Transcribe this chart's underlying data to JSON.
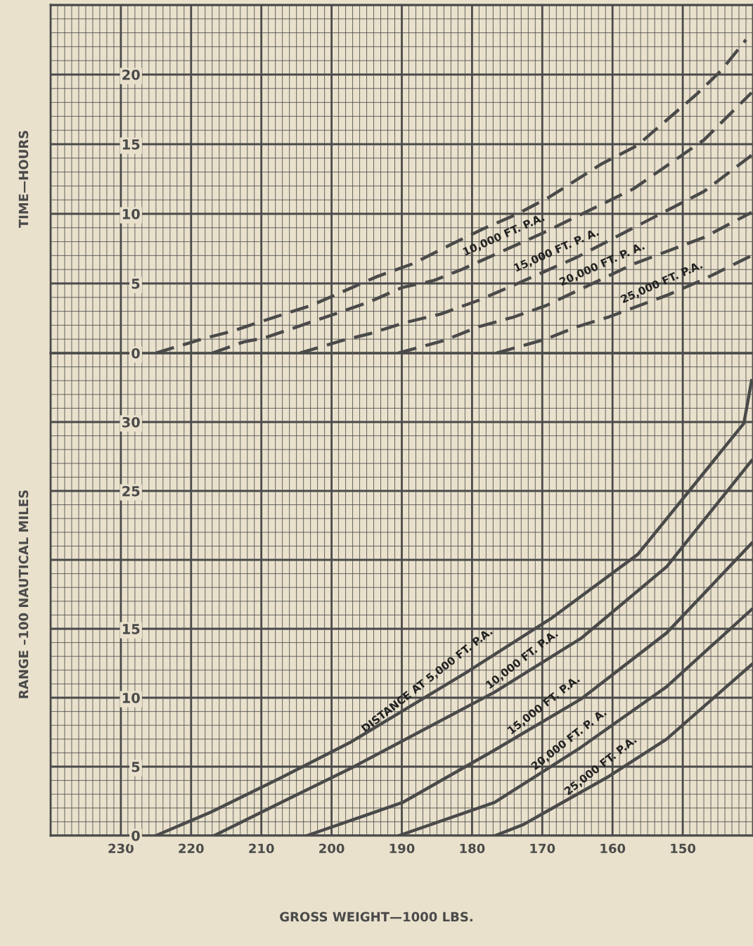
{
  "chart_data": [
    {
      "type": "line",
      "ylabel": "TIME—HOURS",
      "xlim": [
        240,
        140
      ],
      "xticks": [
        230,
        220,
        210,
        200,
        190,
        180,
        170,
        160,
        150
      ],
      "ylim": [
        0,
        25
      ],
      "yticks": [
        0,
        5,
        10,
        15,
        20,
        {
          "value": 25,
          "label": null
        }
      ],
      "tick_labels": "y",
      "grid": true,
      "line_style": "dashed",
      "marker": "none",
      "series": [
        {
          "color": "#4a4a4a",
          "x": [
            225,
            218.5,
            214,
            208,
            203,
            198,
            193.5,
            188.5,
            183,
            178.5,
            173.5,
            169,
            161.5,
            156.5,
            148,
            144.5,
            141
          ],
          "values": [
            0,
            1.0,
            1.6,
            2.6,
            3.4,
            4.5,
            5.5,
            6.4,
            7.8,
            8.9,
            10.0,
            11.2,
            13.6,
            14.9,
            18.6,
            20.3,
            22.5
          ]
        },
        {
          "color": "#4a4a4a",
          "x": [
            217,
            212.5,
            209.5,
            206,
            202.5,
            199,
            194.5,
            190,
            185.5,
            181.5,
            170,
            157,
            147,
            140.2
          ],
          "values": [
            0,
            0.8,
            1.1,
            1.7,
            2.3,
            2.9,
            3.7,
            4.7,
            5.2,
            6.0,
            8.6,
            11.8,
            15.3,
            18.7
          ]
        },
        {
          "color": "#4a4a4a",
          "x": [
            204.5,
            198.5,
            194.5,
            189.5,
            184.5,
            179,
            173.5,
            165,
            157,
            147,
            140.2
          ],
          "values": [
            0,
            0.9,
            1.4,
            2.2,
            2.8,
            3.8,
            5.0,
            6.9,
            9.0,
            11.6,
            14.2
          ]
        },
        {
          "color": "#4a4a4a",
          "x": [
            190.5,
            184,
            179,
            174,
            169.5,
            157,
            147,
            140.2
          ],
          "values": [
            0,
            0.9,
            1.9,
            2.6,
            3.4,
            6.4,
            8.3,
            10.1
          ]
        },
        {
          "color": "#4a4a4a",
          "x": [
            176.5,
            169.5,
            165,
            160.5,
            152,
            147,
            140.2
          ],
          "values": [
            0,
            1.0,
            1.9,
            2.6,
            4.2,
            5.3,
            7.0
          ]
        }
      ],
      "annotations": [
        {
          "text": "10,000 FT. P.A.",
          "x": 174.7,
          "y": 7.6
        },
        {
          "text": "15,000 FT. P. A.",
          "x": 167.2,
          "y": 6.5
        },
        {
          "text": "20,000 FT. P. A.",
          "x": 160.7,
          "y": 5.5
        },
        {
          "text": "25,000 FT. P.A.",
          "x": 152.2,
          "y": 4.2
        }
      ]
    },
    {
      "type": "line",
      "ylabel": "RANGE –100 NAUTICAL MILES",
      "xlabel": "GROSS WEIGHT—1000 LBS.",
      "xlim": [
        240,
        140
      ],
      "xticks": [
        230,
        220,
        210,
        200,
        190,
        180,
        170,
        160,
        150
      ],
      "ylim": [
        0,
        35
      ],
      "yticks": [
        0,
        5,
        10,
        15,
        {
          "value": 20,
          "label": null
        },
        25,
        30,
        {
          "value": 35,
          "label": null
        }
      ],
      "grid": true,
      "line_style": "solid",
      "marker": "none",
      "series": [
        {
          "color": "#4a4a4a",
          "x": [
            225,
            217.2,
            207.2,
            197.2,
            180.9,
            168.6,
            156.4,
            141.3,
            140.2
          ],
          "values": [
            0,
            1.7,
            4.2,
            6.8,
            11.8,
            15.8,
            20.4,
            29.9,
            33.0
          ]
        },
        {
          "color": "#4a4a4a",
          "x": [
            216.7,
            207.2,
            197.2,
            176.8,
            164.5,
            152.3,
            140.2
          ],
          "values": [
            0,
            2.4,
            4.9,
            10.4,
            14.3,
            19.5,
            27.2
          ]
        },
        {
          "color": "#4a4a4a",
          "x": [
            203.5,
            189.9,
            176.8,
            164.5,
            152.3,
            140.2
          ],
          "values": [
            0,
            2.4,
            6.2,
            9.9,
            14.7,
            21.2
          ]
        },
        {
          "color": "#4a4a4a",
          "x": [
            190.4,
            176.8,
            164.5,
            152.3,
            140.2
          ],
          "values": [
            0,
            2.4,
            6.4,
            10.8,
            16.4
          ]
        },
        {
          "color": "#4a4a4a",
          "x": [
            176.7,
            172.7,
            160.5,
            152.3,
            140.2
          ],
          "values": [
            0,
            0.8,
            4.3,
            7.0,
            12.4
          ]
        }
      ],
      "annotations": [
        {
          "text": "DISTANCE AT 5,000 FT. P.A.",
          "x": 185.2,
          "y": 10.5
        },
        {
          "text": "10,000 FT. P.A.",
          "x": 171.7,
          "y": 12.0
        },
        {
          "text": "15,000 FT. P.A.",
          "x": 168.6,
          "y": 8.7
        },
        {
          "text": "20,000 FT. P. A.",
          "x": 165.0,
          "y": 6.2
        },
        {
          "text": "25,000 FT. P.A.",
          "x": 160.5,
          "y": 4.3
        }
      ]
    }
  ]
}
